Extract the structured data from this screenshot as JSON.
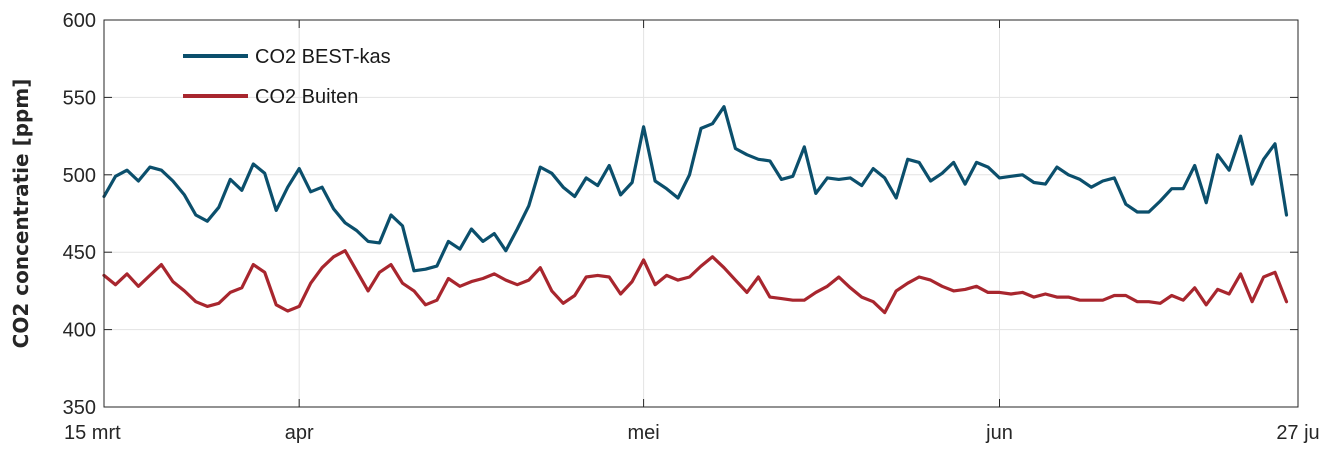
{
  "chart_data": {
    "type": "line",
    "ylabel": "CO2 concentratie [ppm]",
    "ylim": [
      350,
      600
    ],
    "yticks": [
      350,
      400,
      450,
      500,
      550,
      600
    ],
    "xlim": [
      "2019-03-15",
      "2019-06-27"
    ],
    "xticks": [
      {
        "date": "2019-03-15",
        "label": "15 mrt"
      },
      {
        "date": "2019-04-01",
        "label": "apr"
      },
      {
        "date": "2019-05-01",
        "label": "mei"
      },
      {
        "date": "2019-06-01",
        "label": "jun"
      },
      {
        "date": "2019-06-27",
        "label": "27 ju"
      }
    ],
    "grid": true,
    "legend_position": "top-left",
    "series": [
      {
        "name": "CO2 BEST-kas",
        "color": "#0b4f6c",
        "values": [
          [
            "2019-03-15",
            486
          ],
          [
            "2019-03-16",
            499
          ],
          [
            "2019-03-17",
            503
          ],
          [
            "2019-03-18",
            496
          ],
          [
            "2019-03-19",
            505
          ],
          [
            "2019-03-20",
            503
          ],
          [
            "2019-03-21",
            496
          ],
          [
            "2019-03-22",
            487
          ],
          [
            "2019-03-23",
            474
          ],
          [
            "2019-03-24",
            470
          ],
          [
            "2019-03-25",
            479
          ],
          [
            "2019-03-26",
            497
          ],
          [
            "2019-03-27",
            490
          ],
          [
            "2019-03-28",
            507
          ],
          [
            "2019-03-29",
            501
          ],
          [
            "2019-03-30",
            477
          ],
          [
            "2019-03-31",
            492
          ],
          [
            "2019-04-01",
            504
          ],
          [
            "2019-04-02",
            489
          ],
          [
            "2019-04-03",
            492
          ],
          [
            "2019-04-04",
            478
          ],
          [
            "2019-04-05",
            469
          ],
          [
            "2019-04-06",
            464
          ],
          [
            "2019-04-07",
            457
          ],
          [
            "2019-04-08",
            456
          ],
          [
            "2019-04-09",
            474
          ],
          [
            "2019-04-10",
            467
          ],
          [
            "2019-04-11",
            438
          ],
          [
            "2019-04-12",
            439
          ],
          [
            "2019-04-13",
            441
          ],
          [
            "2019-04-14",
            457
          ],
          [
            "2019-04-15",
            452
          ],
          [
            "2019-04-16",
            465
          ],
          [
            "2019-04-17",
            457
          ],
          [
            "2019-04-18",
            462
          ],
          [
            "2019-04-19",
            451
          ],
          [
            "2019-04-20",
            465
          ],
          [
            "2019-04-21",
            480
          ],
          [
            "2019-04-22",
            505
          ],
          [
            "2019-04-23",
            501
          ],
          [
            "2019-04-24",
            492
          ],
          [
            "2019-04-25",
            486
          ],
          [
            "2019-04-26",
            498
          ],
          [
            "2019-04-27",
            493
          ],
          [
            "2019-04-28",
            506
          ],
          [
            "2019-04-29",
            487
          ],
          [
            "2019-04-30",
            495
          ],
          [
            "2019-05-01",
            531
          ],
          [
            "2019-05-02",
            496
          ],
          [
            "2019-05-03",
            491
          ],
          [
            "2019-05-04",
            485
          ],
          [
            "2019-05-05",
            500
          ],
          [
            "2019-05-06",
            530
          ],
          [
            "2019-05-07",
            533
          ],
          [
            "2019-05-08",
            544
          ],
          [
            "2019-05-09",
            517
          ],
          [
            "2019-05-10",
            513
          ],
          [
            "2019-05-11",
            510
          ],
          [
            "2019-05-12",
            509
          ],
          [
            "2019-05-13",
            497
          ],
          [
            "2019-05-14",
            499
          ],
          [
            "2019-05-15",
            518
          ],
          [
            "2019-05-16",
            488
          ],
          [
            "2019-05-17",
            498
          ],
          [
            "2019-05-18",
            497
          ],
          [
            "2019-05-19",
            498
          ],
          [
            "2019-05-20",
            493
          ],
          [
            "2019-05-21",
            504
          ],
          [
            "2019-05-22",
            498
          ],
          [
            "2019-05-23",
            485
          ],
          [
            "2019-05-24",
            510
          ],
          [
            "2019-05-25",
            508
          ],
          [
            "2019-05-26",
            496
          ],
          [
            "2019-05-27",
            501
          ],
          [
            "2019-05-28",
            508
          ],
          [
            "2019-05-29",
            494
          ],
          [
            "2019-05-30",
            508
          ],
          [
            "2019-05-31",
            505
          ],
          [
            "2019-06-01",
            498
          ],
          [
            "2019-06-02",
            499
          ],
          [
            "2019-06-03",
            500
          ],
          [
            "2019-06-04",
            495
          ],
          [
            "2019-06-05",
            494
          ],
          [
            "2019-06-06",
            505
          ],
          [
            "2019-06-07",
            500
          ],
          [
            "2019-06-08",
            497
          ],
          [
            "2019-06-09",
            492
          ],
          [
            "2019-06-10",
            496
          ],
          [
            "2019-06-11",
            498
          ],
          [
            "2019-06-12",
            481
          ],
          [
            "2019-06-13",
            476
          ],
          [
            "2019-06-14",
            476
          ],
          [
            "2019-06-15",
            483
          ],
          [
            "2019-06-16",
            491
          ],
          [
            "2019-06-17",
            491
          ],
          [
            "2019-06-18",
            506
          ],
          [
            "2019-06-19",
            482
          ],
          [
            "2019-06-20",
            513
          ],
          [
            "2019-06-21",
            503
          ],
          [
            "2019-06-22",
            525
          ],
          [
            "2019-06-23",
            494
          ],
          [
            "2019-06-24",
            510
          ],
          [
            "2019-06-25",
            520
          ],
          [
            "2019-06-26",
            474
          ]
        ]
      },
      {
        "name": "CO2 Buiten",
        "color": "#a8262e",
        "values": [
          [
            "2019-03-15",
            435
          ],
          [
            "2019-03-16",
            429
          ],
          [
            "2019-03-17",
            436
          ],
          [
            "2019-03-18",
            428
          ],
          [
            "2019-03-19",
            435
          ],
          [
            "2019-03-20",
            442
          ],
          [
            "2019-03-21",
            431
          ],
          [
            "2019-03-22",
            425
          ],
          [
            "2019-03-23",
            418
          ],
          [
            "2019-03-24",
            415
          ],
          [
            "2019-03-25",
            417
          ],
          [
            "2019-03-26",
            424
          ],
          [
            "2019-03-27",
            427
          ],
          [
            "2019-03-28",
            442
          ],
          [
            "2019-03-29",
            437
          ],
          [
            "2019-03-30",
            416
          ],
          [
            "2019-03-31",
            412
          ],
          [
            "2019-04-01",
            415
          ],
          [
            "2019-04-02",
            430
          ],
          [
            "2019-04-03",
            440
          ],
          [
            "2019-04-04",
            447
          ],
          [
            "2019-04-05",
            451
          ],
          [
            "2019-04-06",
            438
          ],
          [
            "2019-04-07",
            425
          ],
          [
            "2019-04-08",
            437
          ],
          [
            "2019-04-09",
            442
          ],
          [
            "2019-04-10",
            430
          ],
          [
            "2019-04-11",
            425
          ],
          [
            "2019-04-12",
            416
          ],
          [
            "2019-04-13",
            419
          ],
          [
            "2019-04-14",
            433
          ],
          [
            "2019-04-15",
            428
          ],
          [
            "2019-04-16",
            431
          ],
          [
            "2019-04-17",
            433
          ],
          [
            "2019-04-18",
            436
          ],
          [
            "2019-04-19",
            432
          ],
          [
            "2019-04-20",
            429
          ],
          [
            "2019-04-21",
            432
          ],
          [
            "2019-04-22",
            440
          ],
          [
            "2019-04-23",
            425
          ],
          [
            "2019-04-24",
            417
          ],
          [
            "2019-04-25",
            422
          ],
          [
            "2019-04-26",
            434
          ],
          [
            "2019-04-27",
            435
          ],
          [
            "2019-04-28",
            434
          ],
          [
            "2019-04-29",
            423
          ],
          [
            "2019-04-30",
            431
          ],
          [
            "2019-05-01",
            445
          ],
          [
            "2019-05-02",
            429
          ],
          [
            "2019-05-03",
            435
          ],
          [
            "2019-05-04",
            432
          ],
          [
            "2019-05-05",
            434
          ],
          [
            "2019-05-06",
            441
          ],
          [
            "2019-05-07",
            447
          ],
          [
            "2019-05-08",
            440
          ],
          [
            "2019-05-09",
            432
          ],
          [
            "2019-05-10",
            424
          ],
          [
            "2019-05-11",
            434
          ],
          [
            "2019-05-12",
            421
          ],
          [
            "2019-05-13",
            420
          ],
          [
            "2019-05-14",
            419
          ],
          [
            "2019-05-15",
            419
          ],
          [
            "2019-05-16",
            424
          ],
          [
            "2019-05-17",
            428
          ],
          [
            "2019-05-18",
            434
          ],
          [
            "2019-05-19",
            427
          ],
          [
            "2019-05-20",
            421
          ],
          [
            "2019-05-21",
            418
          ],
          [
            "2019-05-22",
            411
          ],
          [
            "2019-05-23",
            425
          ],
          [
            "2019-05-24",
            430
          ],
          [
            "2019-05-25",
            434
          ],
          [
            "2019-05-26",
            432
          ],
          [
            "2019-05-27",
            428
          ],
          [
            "2019-05-28",
            425
          ],
          [
            "2019-05-29",
            426
          ],
          [
            "2019-05-30",
            428
          ],
          [
            "2019-05-31",
            424
          ],
          [
            "2019-06-01",
            424
          ],
          [
            "2019-06-02",
            423
          ],
          [
            "2019-06-03",
            424
          ],
          [
            "2019-06-04",
            421
          ],
          [
            "2019-06-05",
            423
          ],
          [
            "2019-06-06",
            421
          ],
          [
            "2019-06-07",
            421
          ],
          [
            "2019-06-08",
            419
          ],
          [
            "2019-06-09",
            419
          ],
          [
            "2019-06-10",
            419
          ],
          [
            "2019-06-11",
            422
          ],
          [
            "2019-06-12",
            422
          ],
          [
            "2019-06-13",
            418
          ],
          [
            "2019-06-14",
            418
          ],
          [
            "2019-06-15",
            417
          ],
          [
            "2019-06-16",
            422
          ],
          [
            "2019-06-17",
            419
          ],
          [
            "2019-06-18",
            427
          ],
          [
            "2019-06-19",
            416
          ],
          [
            "2019-06-20",
            426
          ],
          [
            "2019-06-21",
            423
          ],
          [
            "2019-06-22",
            436
          ],
          [
            "2019-06-23",
            418
          ],
          [
            "2019-06-24",
            434
          ],
          [
            "2019-06-25",
            437
          ],
          [
            "2019-06-26",
            418
          ]
        ]
      }
    ]
  }
}
